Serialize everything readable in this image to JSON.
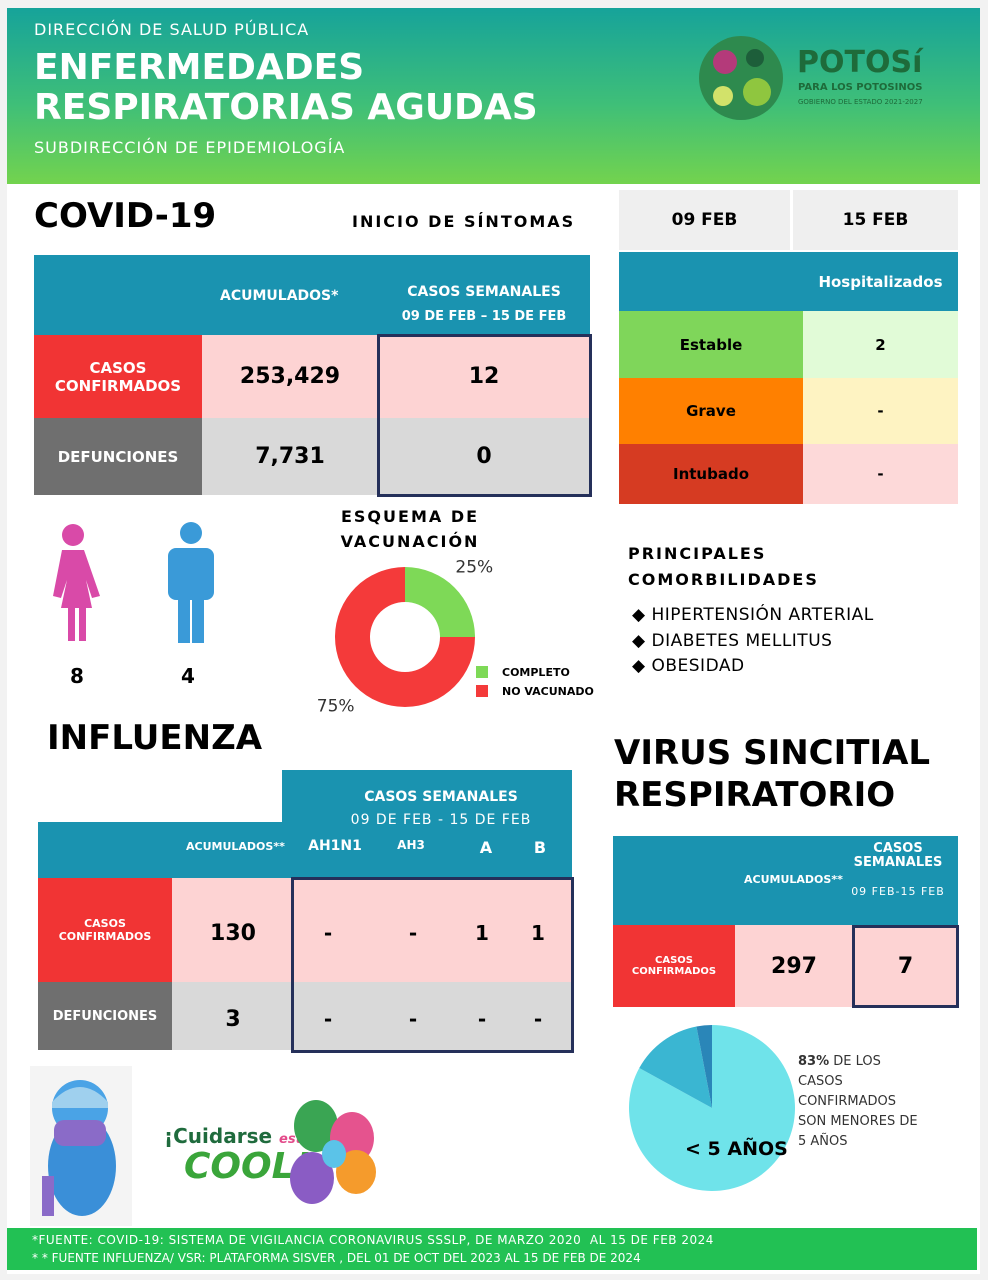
{
  "header": {
    "org": "DIRECCIÓN DE SALUD PÚBLICA",
    "title_line1": "ENFERMEDADES",
    "title_line2": "RESPIRATORIAS AGUDAS",
    "subtitle": "SUBDIRECCIÓN DE EPIDEMIOLOGÍA",
    "logo": {
      "name": "POTOSí",
      "tagline": "PARA LOS POTOSINOS",
      "government": "GOBIERNO DEL ESTADO 2021-2027"
    }
  },
  "covid": {
    "title": "COVID-19",
    "onset_label": "INICIO DE SÍNTOMAS",
    "table": {
      "headers": [
        "ACUMULADOS*",
        "CASOS SEMANALES",
        "09 DE FEB – 15 DE FEB"
      ],
      "rows": [
        [
          "CASOS CONFIRMADOS",
          "253,429",
          "12"
        ],
        [
          "DEFUNCIONES",
          "7,731",
          "0"
        ]
      ]
    },
    "dates": [
      "09 FEB",
      "15 FEB"
    ],
    "hospital_header": "Hospitalizados",
    "hospital_rows": [
      [
        "Estable",
        "2"
      ],
      [
        "Grave",
        "-"
      ],
      [
        "Intubado",
        "-"
      ]
    ],
    "women": "8",
    "men": "4",
    "comorbidities_title_line1": "PRINCIPALES",
    "comorbidities_title_line2": "COMORBILIDADES",
    "comorbidities": [
      "HIPERTENSIÓN ARTERIAL",
      "DIABETES MELLITUS",
      "OBESIDAD"
    ]
  },
  "influenza": {
    "title": "INFLUENZA",
    "weekly_header": "CASOS SEMANALES",
    "weekly_dates": "09 DE FEB - 15 DE FEB",
    "columns": [
      "ACUMULADOS**",
      "AH1N1",
      "AH3",
      "A",
      "B"
    ],
    "rows": [
      [
        "CASOS CONFIRMADOS",
        "130",
        "-",
        "-",
        "1",
        "1"
      ],
      [
        "DEFUNCIONES",
        "3",
        "-",
        "-",
        "-",
        "-"
      ]
    ]
  },
  "vsr": {
    "title_line1": "VIRUS SINCITIAL",
    "title_line2": "RESPIRATORIO",
    "columns": [
      "ACUMULADOS**",
      "CASOS SEMANALES",
      "09 FEB-15 FEB"
    ],
    "row": [
      "CASOS CONFIRMADOS",
      "297",
      "7"
    ],
    "note": "DE LOS CASOS CONFIRMADOS SON MENORES DE 5 AÑOS"
  },
  "campaign": {
    "line1": "¡Cuidarse",
    "line2": "está",
    "line3": "COOL!"
  },
  "footer": [
    "*FUENTE: COVID-19: SISTEMA DE VIGILANCIA CORONAVIRUS SSSLP, DE MARZO 2020  AL 15 DE FEB 2024",
    "* * FUENTE INFLUENZA/ VSR: PLATAFORMA SISVER , DEL 01 DE OCT DEL 2023 AL 15 DE FEB DE 2024"
  ],
  "chart_data": [
    {
      "type": "donut",
      "title_line1": "ESQUEMA DE",
      "title_line2": "VACUNACIÓN",
      "categories": [
        "COMPLETO",
        "NO VACUNADO"
      ],
      "values": [
        25,
        75
      ],
      "value_labels": [
        "25%",
        "75%"
      ],
      "colors": [
        "#7ed957",
        "#f43a3a"
      ]
    },
    {
      "type": "pie",
      "categories": [
        "< 5 AÑOS",
        null,
        null
      ],
      "values": [
        83,
        14,
        3
      ],
      "value_labels": [
        "83%",
        null,
        null
      ],
      "colors": [
        "#6fe3ea",
        "#3ab6d2",
        "#2a86b8"
      ]
    }
  ]
}
